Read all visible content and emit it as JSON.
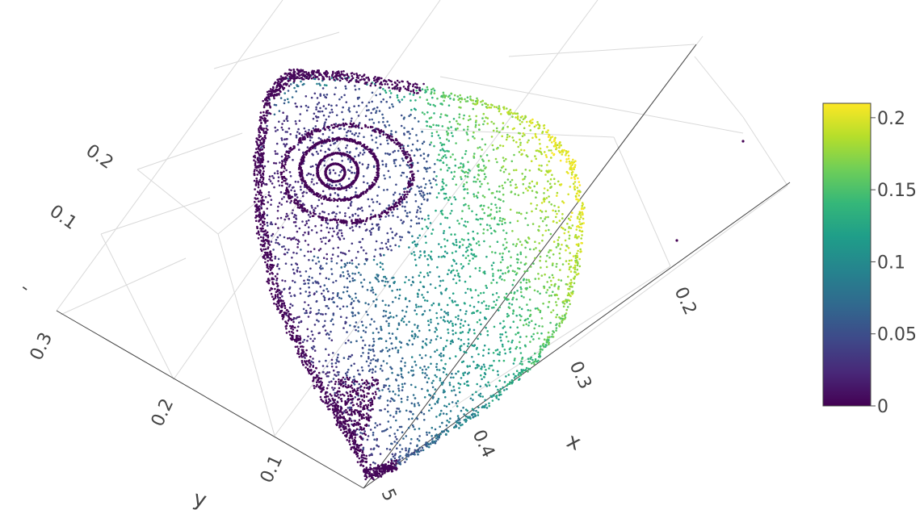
{
  "chart_data": {
    "type": "scatter3d",
    "x_axis": {
      "title": "x",
      "ticks": [
        "0.2",
        "0.3",
        "0.4",
        "5"
      ]
    },
    "y_axis": {
      "title": "y",
      "ticks": [
        "0.3",
        "0.2",
        "0.1"
      ]
    },
    "z_axis": {
      "title": "-",
      "ticks": [
        "0.2",
        "0.1"
      ]
    },
    "colorbar": {
      "colorscale": "viridis",
      "range": [
        0,
        0.21
      ],
      "ticks": [
        "0.2",
        "0.15",
        "0.1",
        "0.05",
        "0"
      ],
      "tick_values": [
        0.2,
        0.15,
        0.1,
        0.05,
        0
      ]
    },
    "grid": true,
    "point_color": "value",
    "colors": {
      "viridis": [
        "#440154",
        "#482878",
        "#3e4989",
        "#31688e",
        "#26828e",
        "#1f9e89",
        "#35b779",
        "#6ece58",
        "#b5de2b",
        "#fde725"
      ],
      "grid": "#d9d9d9",
      "axis_line": "#444444"
    }
  }
}
